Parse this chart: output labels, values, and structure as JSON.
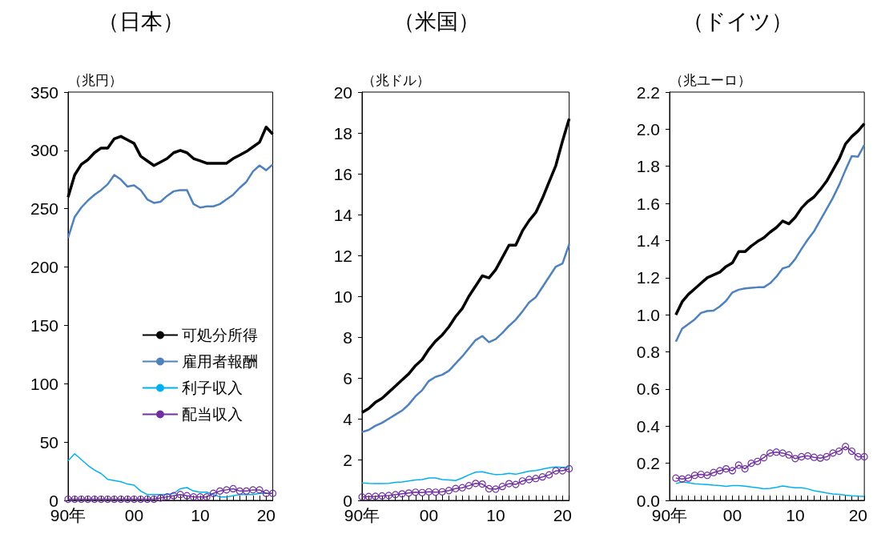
{
  "chart_data": [
    {
      "type": "line",
      "title": "（日本）",
      "ylabel": "（兆円）",
      "categories": [
        "90年",
        null,
        null,
        null,
        null,
        null,
        null,
        null,
        null,
        null,
        "00",
        null,
        null,
        null,
        null,
        null,
        null,
        null,
        null,
        null,
        "10",
        null,
        null,
        null,
        null,
        null,
        null,
        null,
        null,
        null,
        "20",
        null
      ],
      "ylim": [
        0,
        350
      ],
      "yticks": [
        0,
        50,
        100,
        150,
        200,
        250,
        300,
        350
      ],
      "grid": false,
      "legend": "bottom right",
      "series": [
        {
          "name": "可処分所得",
          "color": "#000000",
          "marker": "none",
          "values": [
            260,
            279,
            288,
            292,
            298,
            302,
            302,
            310,
            312,
            309,
            306,
            295,
            291,
            287,
            290,
            293,
            298,
            300,
            298,
            293,
            291,
            289,
            289,
            289,
            289,
            293,
            296,
            299,
            303,
            307,
            320,
            314
          ]
        },
        {
          "name": "雇用者報酬",
          "color": "#4f81bd",
          "marker": "none",
          "values": [
            225,
            243,
            251,
            257,
            262,
            266,
            271,
            279,
            275,
            269,
            270,
            266,
            258,
            255,
            256,
            261,
            265,
            266,
            266,
            254,
            251,
            252,
            252,
            254,
            258,
            262,
            268,
            273,
            282,
            287,
            283,
            288
          ]
        },
        {
          "name": "利子収入",
          "color": "#00b0f0",
          "marker": "none",
          "values": [
            34,
            40,
            35,
            30,
            26,
            23,
            18,
            17,
            16,
            14,
            13,
            8,
            5,
            5,
            5,
            5,
            6,
            10,
            11,
            8,
            7,
            7,
            5,
            3,
            3,
            4,
            5,
            5,
            5,
            6,
            6,
            6
          ]
        },
        {
          "name": "配当収入",
          "color": "#7030a0",
          "marker": "circle",
          "values": [
            1,
            1,
            1,
            1,
            1,
            1,
            1,
            1,
            1,
            1,
            1,
            1,
            1,
            1,
            2,
            3,
            4,
            5,
            4,
            3,
            3,
            3,
            6,
            8,
            9,
            10,
            8,
            8,
            9,
            9,
            6,
            6
          ]
        }
      ]
    },
    {
      "type": "line",
      "title": "（米国）",
      "ylabel": "（兆ドル）",
      "categories": [
        "90年",
        null,
        null,
        null,
        null,
        null,
        null,
        null,
        null,
        null,
        "00",
        null,
        null,
        null,
        null,
        null,
        null,
        null,
        null,
        null,
        "10",
        null,
        null,
        null,
        null,
        null,
        null,
        null,
        null,
        null,
        "20",
        null
      ],
      "ylim": [
        0,
        20
      ],
      "yticks": [
        0,
        2,
        4,
        6,
        8,
        10,
        12,
        14,
        16,
        18,
        20
      ],
      "grid": false,
      "series": [
        {
          "color": "#000000",
          "marker": "none",
          "values": [
            4.3,
            4.5,
            4.8,
            5.0,
            5.3,
            5.6,
            5.9,
            6.2,
            6.6,
            6.9,
            7.4,
            7.8,
            8.1,
            8.5,
            9.0,
            9.4,
            10.0,
            10.5,
            11.0,
            10.9,
            11.3,
            11.9,
            12.5,
            12.5,
            13.2,
            13.7,
            14.1,
            14.8,
            15.6,
            16.4,
            17.6,
            18.7
          ]
        },
        {
          "color": "#4f81bd",
          "marker": "none",
          "values": [
            3.35,
            3.45,
            3.65,
            3.8,
            4.0,
            4.2,
            4.4,
            4.7,
            5.1,
            5.4,
            5.85,
            6.05,
            6.15,
            6.35,
            6.7,
            7.05,
            7.45,
            7.85,
            8.05,
            7.75,
            7.9,
            8.2,
            8.55,
            8.85,
            9.25,
            9.7,
            9.95,
            10.45,
            10.95,
            11.45,
            11.6,
            12.55
          ]
        },
        {
          "color": "#00b0f0",
          "marker": "none",
          "values": [
            0.85,
            0.83,
            0.82,
            0.82,
            0.83,
            0.88,
            0.9,
            0.95,
            1.0,
            1.02,
            1.1,
            1.1,
            1.02,
            1.0,
            0.97,
            1.1,
            1.25,
            1.38,
            1.4,
            1.32,
            1.26,
            1.27,
            1.32,
            1.28,
            1.35,
            1.43,
            1.46,
            1.53,
            1.6,
            1.64,
            1.62,
            1.63
          ]
        },
        {
          "color": "#7030a0",
          "marker": "circle",
          "values": [
            0.17,
            0.19,
            0.2,
            0.22,
            0.24,
            0.28,
            0.32,
            0.36,
            0.4,
            0.38,
            0.42,
            0.4,
            0.42,
            0.48,
            0.58,
            0.62,
            0.72,
            0.83,
            0.8,
            0.57,
            0.55,
            0.68,
            0.82,
            0.78,
            0.95,
            1.02,
            1.07,
            1.15,
            1.25,
            1.45,
            1.45,
            1.55
          ]
        }
      ]
    },
    {
      "type": "line",
      "title": "（ドイツ）",
      "ylabel": "（兆ユーロ）",
      "categories": [
        "90年",
        null,
        null,
        null,
        null,
        null,
        null,
        null,
        null,
        null,
        "00",
        null,
        null,
        null,
        null,
        null,
        null,
        null,
        null,
        null,
        "10",
        null,
        null,
        null,
        null,
        null,
        null,
        null,
        null,
        null,
        "20",
        null
      ],
      "ylim": [
        0,
        2.2
      ],
      "yticks": [
        {
          "value": 0,
          "label": "0.0"
        },
        0.2,
        0.4,
        0.6,
        0.8,
        {
          "value": 1,
          "label": "1.0"
        },
        1.2,
        1.4,
        1.6,
        1.8,
        {
          "value": 2,
          "label": "2.0"
        },
        2.2
      ],
      "grid": false,
      "series": [
        {
          "color": "#000000",
          "marker": "none",
          "values": [
            null,
            1.0,
            1.07,
            1.11,
            1.14,
            1.17,
            1.2,
            1.215,
            1.23,
            1.26,
            1.28,
            1.34,
            1.34,
            1.37,
            1.395,
            1.415,
            1.445,
            1.47,
            1.505,
            1.49,
            1.525,
            1.575,
            1.61,
            1.635,
            1.675,
            1.72,
            1.78,
            1.84,
            1.92,
            1.96,
            1.99,
            2.03
          ]
        },
        {
          "color": "#4f81bd",
          "marker": "none",
          "values": [
            null,
            0.855,
            0.925,
            0.95,
            0.975,
            1.01,
            1.02,
            1.022,
            1.045,
            1.075,
            1.12,
            1.135,
            1.142,
            1.145,
            1.148,
            1.148,
            1.17,
            1.205,
            1.25,
            1.26,
            1.3,
            1.355,
            1.405,
            1.45,
            1.51,
            1.57,
            1.63,
            1.7,
            1.78,
            1.855,
            1.852,
            1.915
          ]
        },
        {
          "color": "#00b0f0",
          "marker": "none",
          "values": [
            null,
            0.09,
            0.1,
            0.095,
            0.09,
            0.087,
            0.085,
            0.082,
            0.08,
            0.076,
            0.08,
            0.08,
            0.077,
            0.072,
            0.068,
            0.063,
            0.065,
            0.07,
            0.078,
            0.072,
            0.068,
            0.068,
            0.062,
            0.052,
            0.046,
            0.04,
            0.035,
            0.032,
            0.028,
            0.025,
            0.023,
            0.022
          ]
        },
        {
          "color": "#7030a0",
          "marker": "circle",
          "values": [
            null,
            0.12,
            0.115,
            0.12,
            0.135,
            0.14,
            0.135,
            0.15,
            0.16,
            0.17,
            0.16,
            0.19,
            0.17,
            0.2,
            0.21,
            0.23,
            0.255,
            0.26,
            0.255,
            0.245,
            0.225,
            0.235,
            0.24,
            0.232,
            0.228,
            0.235,
            0.255,
            0.265,
            0.29,
            0.265,
            0.235,
            0.235
          ]
        }
      ]
    }
  ]
}
